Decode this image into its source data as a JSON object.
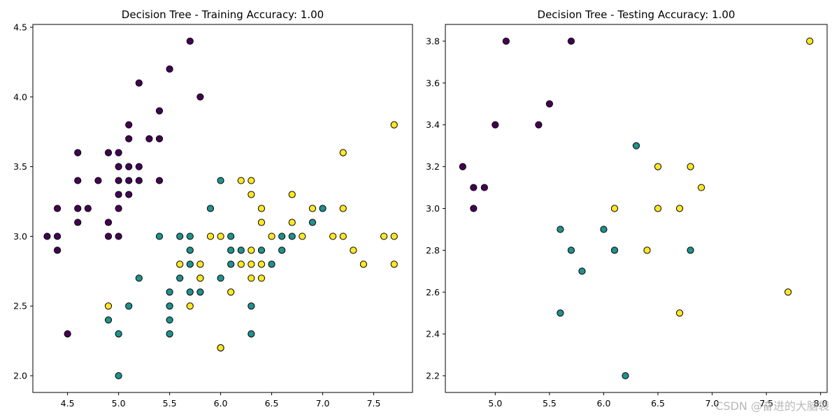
{
  "watermark": "CSDN @奋进的大脑袋",
  "colors": {
    "class0": "#440154",
    "class1": "#21918c",
    "class2": "#fde725",
    "edge": "#000000"
  },
  "chart_data": [
    {
      "type": "scatter",
      "title": "Decision Tree - Training Accuracy: 1.00",
      "xlabel": "",
      "ylabel": "",
      "xlim": [
        4.16,
        7.88
      ],
      "ylim": [
        1.88,
        4.52
      ],
      "xticks": [
        4.5,
        5.0,
        5.5,
        6.0,
        6.5,
        7.0,
        7.5
      ],
      "yticks": [
        2.0,
        2.5,
        3.0,
        3.5,
        4.0,
        4.5
      ],
      "legend": "none",
      "grid": false,
      "series": [
        {
          "class": 0,
          "color": "#440154",
          "points": [
            [
              5.7,
              4.4
            ],
            [
              5.5,
              4.2
            ],
            [
              5.2,
              4.1
            ],
            [
              5.8,
              4.0
            ],
            [
              5.4,
              3.9
            ],
            [
              5.1,
              3.8
            ],
            [
              5.1,
              3.7
            ],
            [
              5.3,
              3.7
            ],
            [
              5.4,
              3.7
            ],
            [
              4.6,
              3.6
            ],
            [
              4.9,
              3.6
            ],
            [
              5.0,
              3.6
            ],
            [
              5.0,
              3.5
            ],
            [
              5.1,
              3.5
            ],
            [
              5.2,
              3.5
            ],
            [
              4.6,
              3.4
            ],
            [
              4.8,
              3.4
            ],
            [
              5.0,
              3.4
            ],
            [
              5.1,
              3.4
            ],
            [
              5.2,
              3.4
            ],
            [
              5.4,
              3.4
            ],
            [
              5.0,
              3.3
            ],
            [
              5.1,
              3.3
            ],
            [
              4.4,
              3.2
            ],
            [
              4.6,
              3.2
            ],
            [
              4.7,
              3.2
            ],
            [
              5.0,
              3.2
            ],
            [
              4.6,
              3.1
            ],
            [
              4.9,
              3.1
            ],
            [
              4.3,
              3.0
            ],
            [
              4.4,
              3.0
            ],
            [
              4.9,
              3.0
            ],
            [
              5.0,
              3.0
            ],
            [
              4.4,
              2.9
            ],
            [
              4.5,
              2.3
            ]
          ]
        },
        {
          "class": 1,
          "color": "#21918c",
          "points": [
            [
              6.0,
              3.4
            ],
            [
              5.9,
              3.2
            ],
            [
              7.0,
              3.2
            ],
            [
              6.9,
              3.1
            ],
            [
              5.4,
              3.0
            ],
            [
              5.6,
              3.0
            ],
            [
              5.7,
              3.0
            ],
            [
              6.1,
              3.0
            ],
            [
              6.6,
              3.0
            ],
            [
              6.7,
              3.0
            ],
            [
              5.7,
              2.9
            ],
            [
              6.1,
              2.9
            ],
            [
              6.2,
              2.9
            ],
            [
              6.4,
              2.9
            ],
            [
              6.6,
              2.9
            ],
            [
              5.7,
              2.8
            ],
            [
              6.1,
              2.8
            ],
            [
              6.5,
              2.8
            ],
            [
              5.2,
              2.7
            ],
            [
              5.6,
              2.7
            ],
            [
              5.8,
              2.7
            ],
            [
              6.0,
              2.7
            ],
            [
              5.5,
              2.6
            ],
            [
              5.7,
              2.6
            ],
            [
              5.8,
              2.6
            ],
            [
              5.1,
              2.5
            ],
            [
              5.5,
              2.5
            ],
            [
              6.3,
              2.5
            ],
            [
              4.9,
              2.4
            ],
            [
              5.5,
              2.4
            ],
            [
              5.0,
              2.3
            ],
            [
              5.5,
              2.3
            ],
            [
              6.3,
              2.3
            ],
            [
              6.0,
              2.2
            ],
            [
              5.0,
              2.0
            ]
          ]
        },
        {
          "class": 2,
          "color": "#fde725",
          "points": [
            [
              7.7,
              3.8
            ],
            [
              7.2,
              3.6
            ],
            [
              6.2,
              3.4
            ],
            [
              6.3,
              3.4
            ],
            [
              6.3,
              3.3
            ],
            [
              6.7,
              3.3
            ],
            [
              6.4,
              3.2
            ],
            [
              6.9,
              3.2
            ],
            [
              7.2,
              3.2
            ],
            [
              6.4,
              3.1
            ],
            [
              6.7,
              3.1
            ],
            [
              5.9,
              3.0
            ],
            [
              6.0,
              3.0
            ],
            [
              6.5,
              3.0
            ],
            [
              6.8,
              3.0
            ],
            [
              7.1,
              3.0
            ],
            [
              7.2,
              3.0
            ],
            [
              7.6,
              3.0
            ],
            [
              7.7,
              3.0
            ],
            [
              6.3,
              2.9
            ],
            [
              7.3,
              2.9
            ],
            [
              5.6,
              2.8
            ],
            [
              5.8,
              2.8
            ],
            [
              6.2,
              2.8
            ],
            [
              6.3,
              2.8
            ],
            [
              6.4,
              2.8
            ],
            [
              7.4,
              2.8
            ],
            [
              7.7,
              2.8
            ],
            [
              5.8,
              2.7
            ],
            [
              6.3,
              2.7
            ],
            [
              6.4,
              2.7
            ],
            [
              6.1,
              2.6
            ],
            [
              4.9,
              2.5
            ],
            [
              5.7,
              2.5
            ],
            [
              6.0,
              2.2
            ]
          ]
        }
      ]
    },
    {
      "type": "scatter",
      "title": "Decision Tree - Testing Accuracy: 1.00",
      "xlabel": "",
      "ylabel": "",
      "xlim": [
        4.54,
        8.06
      ],
      "ylim": [
        2.12,
        3.88
      ],
      "xticks": [
        5.0,
        5.5,
        6.0,
        6.5,
        7.0,
        7.5,
        8.0
      ],
      "yticks": [
        2.2,
        2.4,
        2.6,
        2.8,
        3.0,
        3.2,
        3.4,
        3.6,
        3.8
      ],
      "legend": "none",
      "grid": false,
      "series": [
        {
          "class": 0,
          "color": "#440154",
          "points": [
            [
              5.1,
              3.8
            ],
            [
              5.7,
              3.8
            ],
            [
              5.5,
              3.5
            ],
            [
              5.0,
              3.4
            ],
            [
              5.4,
              3.4
            ],
            [
              4.7,
              3.2
            ],
            [
              4.8,
              3.1
            ],
            [
              4.9,
              3.1
            ],
            [
              4.8,
              3.0
            ]
          ]
        },
        {
          "class": 1,
          "color": "#21918c",
          "points": [
            [
              6.3,
              3.3
            ],
            [
              5.6,
              2.9
            ],
            [
              6.0,
              2.9
            ],
            [
              5.7,
              2.8
            ],
            [
              6.1,
              2.8
            ],
            [
              6.8,
              2.8
            ],
            [
              5.8,
              2.7
            ],
            [
              5.6,
              2.5
            ],
            [
              6.2,
              2.2
            ]
          ]
        },
        {
          "class": 2,
          "color": "#fde725",
          "points": [
            [
              7.9,
              3.8
            ],
            [
              6.5,
              3.2
            ],
            [
              6.8,
              3.2
            ],
            [
              6.9,
              3.1
            ],
            [
              6.1,
              3.0
            ],
            [
              6.5,
              3.0
            ],
            [
              6.7,
              3.0
            ],
            [
              6.4,
              2.8
            ],
            [
              7.7,
              2.6
            ],
            [
              6.7,
              2.5
            ]
          ]
        }
      ]
    }
  ]
}
